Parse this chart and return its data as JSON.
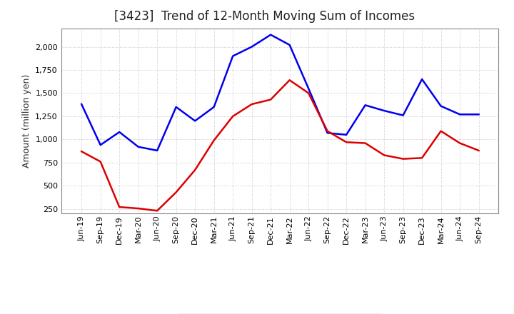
{
  "title": "[3423]  Trend of 12-Month Moving Sum of Incomes",
  "ylabel": "Amount (million yen)",
  "x_labels": [
    "Jun-19",
    "Sep-19",
    "Dec-19",
    "Mar-20",
    "Jun-20",
    "Sep-20",
    "Dec-20",
    "Mar-21",
    "Jun-21",
    "Sep-21",
    "Dec-21",
    "Mar-22",
    "Jun-22",
    "Sep-22",
    "Dec-22",
    "Mar-23",
    "Jun-23",
    "Sep-23",
    "Dec-23",
    "Mar-24",
    "Jun-24",
    "Sep-24"
  ],
  "ordinary_income": [
    1380,
    940,
    1080,
    920,
    880,
    1350,
    1200,
    1350,
    1900,
    2000,
    2130,
    2020,
    1550,
    1070,
    1050,
    1370,
    1310,
    1260,
    1650,
    1360,
    1270,
    1270
  ],
  "net_income": [
    870,
    760,
    270,
    255,
    230,
    430,
    670,
    990,
    1250,
    1380,
    1430,
    1640,
    1500,
    1090,
    970,
    960,
    830,
    790,
    800,
    1090,
    960,
    880
  ],
  "ordinary_color": "#0000ee",
  "net_color": "#dd0000",
  "background_color": "#ffffff",
  "plot_bg_color": "#ffffff",
  "grid_color": "#bbbbbb",
  "ylim": [
    200,
    2200
  ],
  "yticks": [
    250,
    500,
    750,
    1000,
    1250,
    1500,
    1750,
    2000
  ],
  "line_width": 1.8,
  "title_fontsize": 12,
  "legend_fontsize": 9,
  "tick_fontsize": 8,
  "ylabel_fontsize": 9
}
